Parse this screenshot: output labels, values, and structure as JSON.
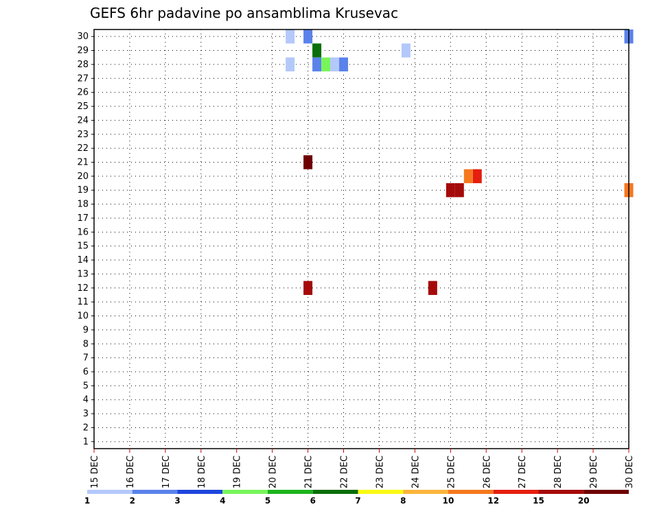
{
  "chart_data": {
    "type": "heatmap",
    "title": "GEFS 6hr padavine po ansamblima Krusevac",
    "xlabel": "",
    "ylabel": "",
    "x_ticks": [
      "15 DEC",
      "16 DEC",
      "17 DEC",
      "18 DEC",
      "19 DEC",
      "20 DEC",
      "21 DEC",
      "22 DEC",
      "23 DEC",
      "24 DEC",
      "25 DEC",
      "26 DEC",
      "27 DEC",
      "28 DEC",
      "29 DEC",
      "30 DEC"
    ],
    "y_ticks": [
      "1",
      "2",
      "3",
      "4",
      "5",
      "6",
      "7",
      "8",
      "9",
      "10",
      "11",
      "12",
      "13",
      "14",
      "15",
      "16",
      "17",
      "18",
      "19",
      "20",
      "21",
      "22",
      "23",
      "24",
      "25",
      "26",
      "27",
      "28",
      "29",
      "30"
    ],
    "xlim": [
      "15 DEC 00z",
      "30 DEC 00z"
    ],
    "ylim": [
      0.5,
      30.5
    ],
    "grid": true,
    "color_levels": [
      "1",
      "2",
      "3",
      "4",
      "5",
      "6",
      "7",
      "8",
      "10",
      "12",
      "15",
      "20"
    ],
    "colors": [
      "#b4c8fa",
      "#5a82eb",
      "#1e46dc",
      "#78f55a",
      "#1eb41e",
      "#0a6e0a",
      "#fafa14",
      "#fab43c",
      "#f5781e",
      "#e61e0f",
      "#a50a0a",
      "#6e0000"
    ],
    "cells": [
      {
        "d": "30 DEC 00z",
        "member": "30",
        "v": "2-3"
      },
      {
        "d": "20 DEC 12z",
        "member": "30",
        "v": "1-2"
      },
      {
        "d": "21 DEC 00z",
        "member": "30",
        "v": "2-3"
      },
      {
        "d": "21 DEC 06z",
        "member": "29",
        "v": "6-7"
      },
      {
        "d": "23 DEC 18z",
        "member": "29",
        "v": "1-2"
      },
      {
        "d": "20 DEC 12z",
        "member": "28",
        "v": "1-2"
      },
      {
        "d": "21 DEC 06z",
        "member": "28",
        "v": "2-3"
      },
      {
        "d": "21 DEC 12z",
        "member": "28",
        "v": "4-5"
      },
      {
        "d": "21 DEC 18z",
        "member": "28",
        "v": "1-2"
      },
      {
        "d": "22 DEC 00z",
        "member": "28",
        "v": "2-3"
      },
      {
        "d": "25 DEC 00z",
        "member": "19",
        "v": "15-20"
      },
      {
        "d": "25 DEC 06z",
        "member": "19",
        "v": "15-20"
      },
      {
        "d": "21 DEC 00z",
        "member": "12",
        "v": "15-20"
      },
      {
        "d": "24 DEC 12z",
        "member": "12",
        "v": "15-20"
      },
      {
        "d": "21 DEC 00z",
        "member": "21",
        "v": ">20"
      },
      {
        "d": "25 DEC 18z",
        "member": "20",
        "v": "12-15"
      },
      {
        "d": "25 DEC 12z",
        "member": "20",
        "v": "10-12"
      },
      {
        "d": "30 DEC 00z",
        "member": "19",
        "v": "10-12"
      }
    ]
  }
}
